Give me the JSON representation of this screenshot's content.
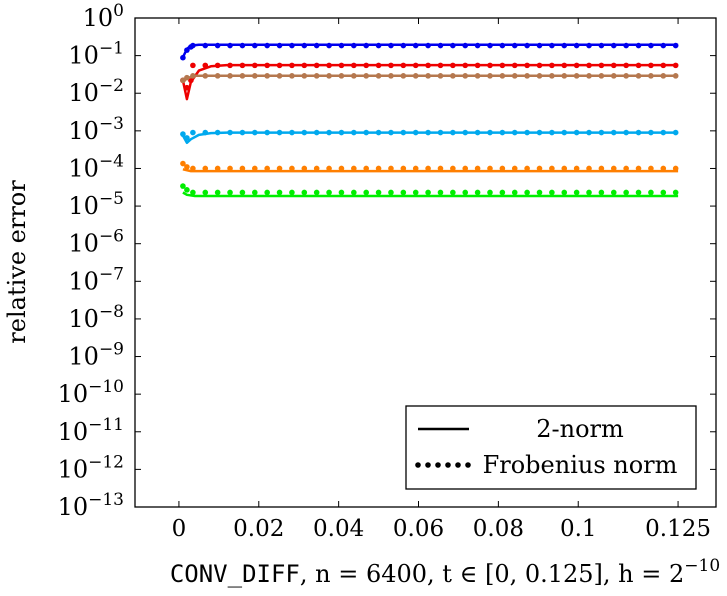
{
  "chart_data": {
    "type": "line",
    "ylabel": "relative error",
    "xlabel": {
      "code": "CONV_DIFF",
      "rest": ", n = 6400, t ∈ [0, 0.125], h = 2",
      "exp": "−10"
    },
    "x_ticks": [
      {
        "v": 0,
        "label": "0"
      },
      {
        "v": 0.02,
        "label": "0.02"
      },
      {
        "v": 0.04,
        "label": "0.04"
      },
      {
        "v": 0.06,
        "label": "0.06"
      },
      {
        "v": 0.08,
        "label": "0.08"
      },
      {
        "v": 0.1,
        "label": "0.1"
      },
      {
        "v": 0.125,
        "label": "0.125"
      }
    ],
    "xlim": [
      -0.011,
      0.1345
    ],
    "y_scale": "log",
    "y_ticks": [
      {
        "v": 0,
        "base": "10",
        "exp": "0"
      },
      {
        "v": -1,
        "base": "10",
        "exp": "−1"
      },
      {
        "v": -2,
        "base": "10",
        "exp": "−2"
      },
      {
        "v": -3,
        "base": "10",
        "exp": "−3"
      },
      {
        "v": -4,
        "base": "10",
        "exp": "−4"
      },
      {
        "v": -5,
        "base": "10",
        "exp": "−5"
      },
      {
        "v": -6,
        "base": "10",
        "exp": "−6"
      },
      {
        "v": -7,
        "base": "10",
        "exp": "−7"
      },
      {
        "v": -8,
        "base": "10",
        "exp": "−8"
      },
      {
        "v": -9,
        "base": "10",
        "exp": "−9"
      },
      {
        "v": -10,
        "base": "10",
        "exp": "−10"
      },
      {
        "v": -11,
        "base": "10",
        "exp": "−11"
      },
      {
        "v": -12,
        "base": "10",
        "exp": "−12"
      },
      {
        "v": -13,
        "base": "10",
        "exp": "−13"
      }
    ],
    "ylim_log10": [
      -13,
      0
    ],
    "grid": false,
    "legend": {
      "placement": "bottom-right",
      "entries": [
        {
          "style": "solid",
          "label": "2-norm"
        },
        {
          "style": "dotted",
          "label": "Frobenius norm"
        }
      ]
    },
    "series": [
      {
        "color": "#0000ee",
        "two_norm": [
          [
            0.001,
            0.09
          ],
          [
            0.002,
            0.15
          ],
          [
            0.003,
            0.185
          ],
          [
            0.005,
            0.195
          ],
          [
            0.01,
            0.195
          ],
          [
            0.125,
            0.195
          ]
        ],
        "frobenius": {
          "start": [
            [
              0.001,
              0.088
            ],
            [
              0.002,
              0.14
            ],
            [
              0.003,
              0.17
            ]
          ],
          "value": 0.185
        }
      },
      {
        "color": "#ee0000",
        "two_norm": [
          [
            0.001,
            0.022
          ],
          [
            0.002,
            0.007
          ],
          [
            0.003,
            0.02
          ],
          [
            0.005,
            0.04
          ],
          [
            0.008,
            0.052
          ],
          [
            0.012,
            0.056
          ],
          [
            0.125,
            0.056
          ]
        ],
        "frobenius": {
          "start": [
            [
              0.001,
              0.022
            ],
            [
              0.002,
              0.014
            ],
            [
              0.003,
              0.022
            ]
          ],
          "value": 0.055
        }
      },
      {
        "color": "#b5784f",
        "two_norm": [
          [
            0.001,
            0.02
          ],
          [
            0.002,
            0.025
          ],
          [
            0.004,
            0.029
          ],
          [
            0.125,
            0.029
          ]
        ],
        "frobenius": {
          "start": [
            [
              0.001,
              0.022
            ],
            [
              0.002,
              0.026
            ]
          ],
          "value": 0.029
        }
      },
      {
        "color": "#00a9ee",
        "two_norm": [
          [
            0.001,
            0.00075
          ],
          [
            0.002,
            0.00048
          ],
          [
            0.003,
            0.0006
          ],
          [
            0.005,
            0.00078
          ],
          [
            0.008,
            0.00087
          ],
          [
            0.012,
            0.0009
          ],
          [
            0.125,
            0.0009
          ]
        ],
        "frobenius": {
          "start": [
            [
              0.001,
              0.00082
            ],
            [
              0.002,
              0.00065
            ]
          ],
          "value": 0.0009
        }
      },
      {
        "color": "#ff7f00",
        "two_norm": [
          [
            0.001,
            9.5e-05
          ],
          [
            0.003,
            8.5e-05
          ],
          [
            0.125,
            8.5e-05
          ]
        ],
        "frobenius": {
          "start": [
            [
              0.001,
              0.000135
            ],
            [
              0.002,
              0.00011
            ]
          ],
          "value": 0.0001
        }
      },
      {
        "color": "#00ee00",
        "two_norm": [
          [
            0.001,
            2.3e-05
          ],
          [
            0.002,
            2e-05
          ],
          [
            0.004,
            1.85e-05
          ],
          [
            0.125,
            1.85e-05
          ]
        ],
        "frobenius": {
          "start": [
            [
              0.001,
              3.4e-05
            ],
            [
              0.002,
              2.7e-05
            ]
          ],
          "value": 2.3e-05
        }
      }
    ]
  }
}
